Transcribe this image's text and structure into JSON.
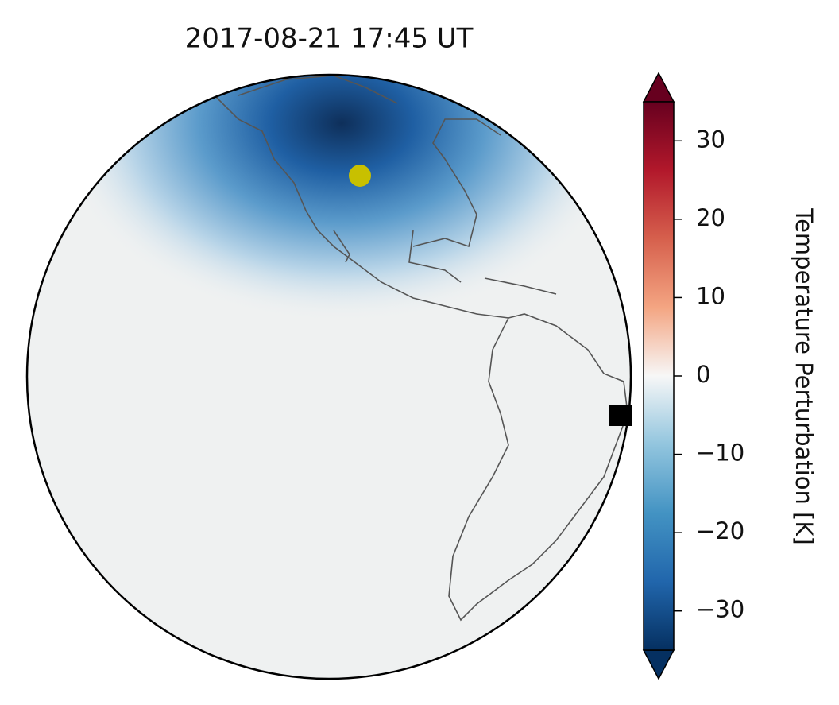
{
  "chart_data": {
    "type": "map",
    "title": "2017-08-21  17:45 UT",
    "colorbar": {
      "label": "Temperature Perturbation [K]",
      "lim": [
        -35,
        35
      ],
      "ticks": [
        {
          "value": -30,
          "label": "−30"
        },
        {
          "value": -20,
          "label": "−20"
        },
        {
          "value": -10,
          "label": "−10"
        },
        0,
        10,
        20,
        30
      ]
    }
  }
}
